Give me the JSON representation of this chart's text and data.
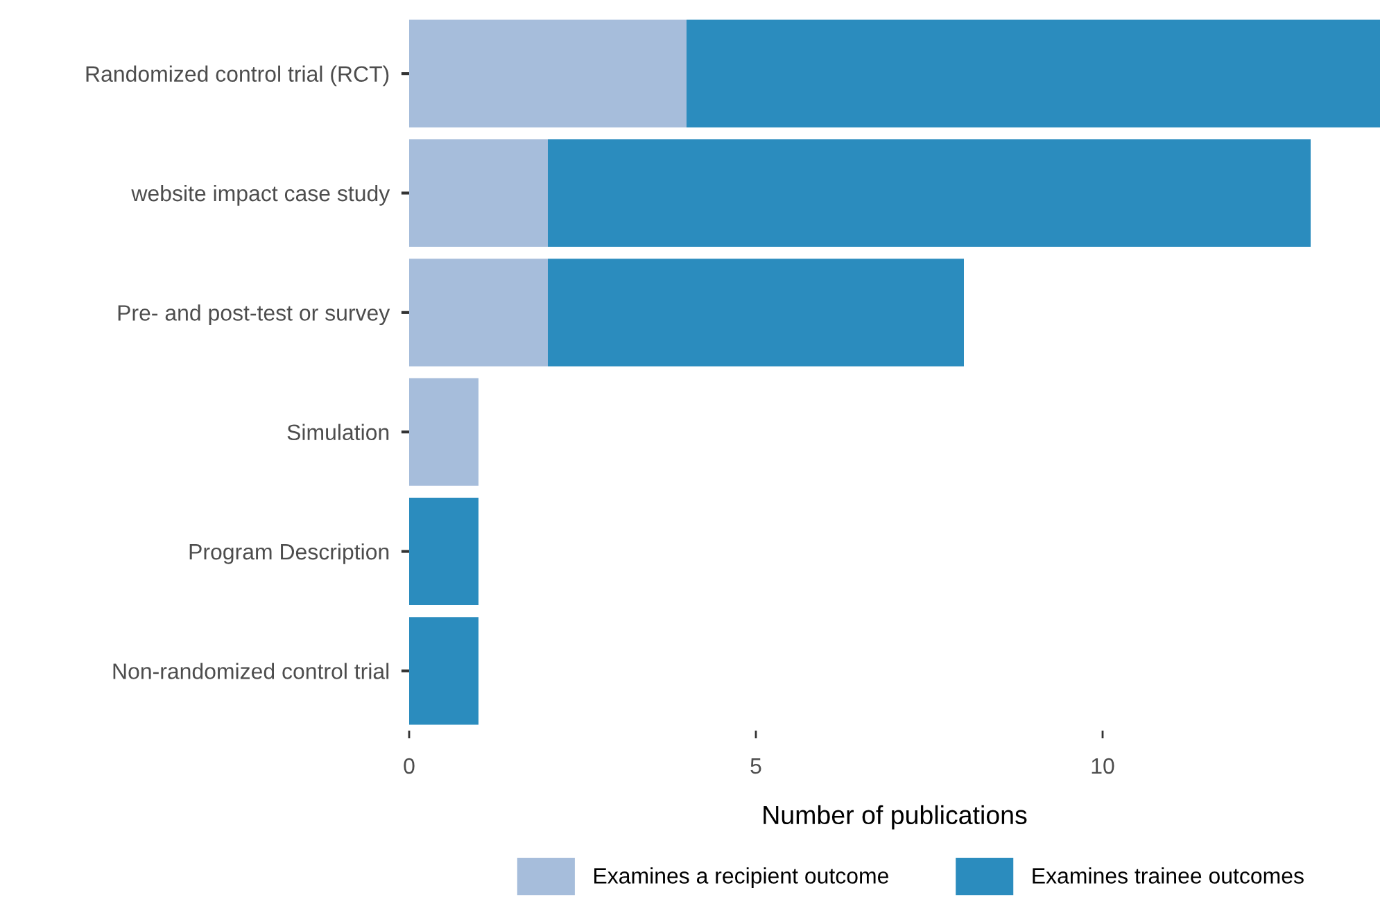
{
  "chart_data": {
    "type": "bar",
    "orientation": "horizontal",
    "stacked": true,
    "xlabel": "Number of publications",
    "categories": [
      "Randomized control trial (RCT)",
      "website impact case study",
      "Pre- and post-test or survey",
      "Simulation",
      "Program Description",
      "Non-randomized control trial"
    ],
    "series": [
      {
        "name": "Examines a recipient outcome",
        "color": "#a6bddb",
        "values": [
          4,
          2,
          2,
          1,
          0,
          0
        ]
      },
      {
        "name": "Examines trainee outcomes",
        "color": "#2b8cbe",
        "values": [
          10,
          11,
          6,
          0,
          1,
          1
        ]
      }
    ],
    "xlim": [
      0,
      14
    ],
    "xticks": [
      0,
      5,
      10
    ],
    "grid": false,
    "legend": "bottom"
  }
}
